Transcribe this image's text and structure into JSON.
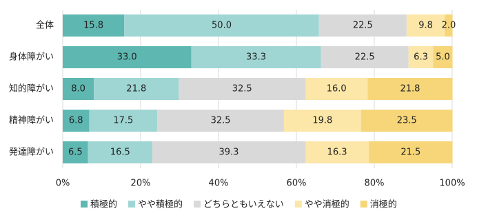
{
  "chart_data": {
    "type": "stacked-bar-horizontal",
    "categories": [
      "全体",
      "身体障がい",
      "知的障がい",
      "精神障がい",
      "発達障がい"
    ],
    "series": [
      {
        "name": "積極的",
        "color": "#5eb8b1",
        "values": [
          15.8,
          33,
          8,
          6.8,
          6.5
        ],
        "value_labels": [
          "15.8",
          "33.0",
          "8.0",
          "6.8",
          "6.5"
        ]
      },
      {
        "name": "やや積極的",
        "color": "#9fd6d3",
        "values": [
          50,
          33.3,
          21.8,
          17.5,
          16.5
        ],
        "value_labels": [
          "50.0",
          "33.3",
          "21.8",
          "17.5",
          "16.5"
        ]
      },
      {
        "name": "どちらともいえない",
        "color": "#d9d9d9",
        "values": [
          22.5,
          22.5,
          32.5,
          32.5,
          39.3
        ],
        "value_labels": [
          "22.5",
          "22.5",
          "32.5",
          "32.5",
          "39.3"
        ]
      },
      {
        "name": "やや消極的",
        "color": "#fce6a8",
        "values": [
          9.8,
          6.3,
          16,
          19.8,
          16.3
        ],
        "value_labels": [
          "9.8",
          "6.3",
          "16.0",
          "19.8",
          "16.3"
        ]
      },
      {
        "name": "消極的",
        "color": "#f6d679",
        "values": [
          2,
          5,
          21.8,
          23.5,
          21.5
        ],
        "value_labels": [
          "2.0",
          "5.0",
          "21.8",
          "23.5",
          "21.5"
        ]
      }
    ],
    "xlim": [
      0,
      100
    ],
    "xticks": [
      {
        "value": 0,
        "label": "0%"
      },
      {
        "value": 20,
        "label": "20%"
      },
      {
        "value": 40,
        "label": "40%"
      },
      {
        "value": 60,
        "label": "60%"
      },
      {
        "value": 80,
        "label": "80%"
      },
      {
        "value": 100,
        "label": "100%"
      }
    ],
    "grid": true
  }
}
